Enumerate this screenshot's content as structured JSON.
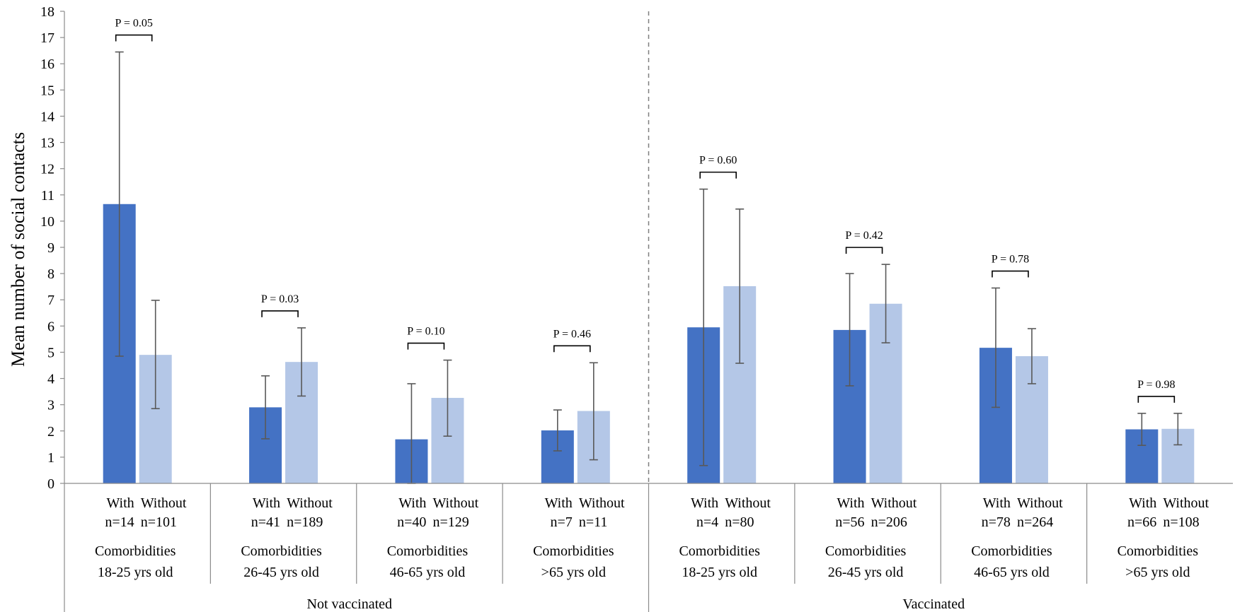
{
  "chart_data": {
    "type": "bar",
    "ylabel": "Mean number of social contacts",
    "ylim": [
      0,
      18
    ],
    "yticks": [
      "0",
      "1",
      "2",
      "3",
      "4",
      "5",
      "6",
      "7",
      "8",
      "9",
      "10",
      "11",
      "12",
      "13",
      "14",
      "15",
      "16",
      "17",
      "18"
    ],
    "bar_labels": [
      "With",
      "Without"
    ],
    "colors": {
      "with": "#4472c4",
      "without": "#b4c7e7",
      "error": "#595959"
    },
    "groups": [
      {
        "label": "Not vaccinated",
        "categories": [
          {
            "line1": "Comorbidities",
            "line2": "18-25 yrs old",
            "n_with": "n=14",
            "n_without": "n=101",
            "p": "P = 0.05",
            "with": {
              "value": 10.65,
              "low": 4.85,
              "high": 16.45
            },
            "without": {
              "value": 4.9,
              "low": 2.85,
              "high": 6.98
            }
          },
          {
            "line1": "Comorbidities",
            "line2": "26-45 yrs old",
            "n_with": "n=41",
            "n_without": "n=189",
            "p": "P = 0.03",
            "with": {
              "value": 2.9,
              "low": 1.7,
              "high": 4.1
            },
            "without": {
              "value": 4.63,
              "low": 3.33,
              "high": 5.93
            }
          },
          {
            "line1": "Comorbidities",
            "line2": "46-65 yrs old",
            "n_with": "n=40",
            "n_without": "n=129",
            "p": "P = 0.10",
            "with": {
              "value": 1.68,
              "low": 0.0,
              "high": 3.8
            },
            "without": {
              "value": 3.26,
              "low": 1.8,
              "high": 4.7
            }
          },
          {
            "line1": "Comorbidities",
            "line2": ">65 yrs old",
            "n_with": "n=7",
            "n_without": "n=11",
            "p": "P = 0.46",
            "with": {
              "value": 2.02,
              "low": 1.24,
              "high": 2.8
            },
            "without": {
              "value": 2.76,
              "low": 0.9,
              "high": 4.6
            }
          }
        ]
      },
      {
        "label": "Vaccinated",
        "categories": [
          {
            "line1": "Comorbidities",
            "line2": "18-25 yrs old",
            "n_with": "n=4",
            "n_without": "n=80",
            "p": "P = 0.60",
            "with": {
              "value": 5.95,
              "low": 0.68,
              "high": 11.22
            },
            "without": {
              "value": 7.52,
              "low": 4.58,
              "high": 10.46
            }
          },
          {
            "line1": "Comorbidities",
            "line2": "26-45 yrs old",
            "n_with": "n=56",
            "n_without": "n=206",
            "p": "P = 0.42",
            "with": {
              "value": 5.85,
              "low": 3.72,
              "high": 8.0
            },
            "without": {
              "value": 6.85,
              "low": 5.36,
              "high": 8.35
            }
          },
          {
            "line1": "Comorbidities",
            "line2": "46-65 yrs old",
            "n_with": "n=78",
            "n_without": "n=264",
            "p": "P = 0.78",
            "with": {
              "value": 5.17,
              "low": 2.9,
              "high": 7.45
            },
            "without": {
              "value": 4.85,
              "low": 3.8,
              "high": 5.9
            }
          },
          {
            "line1": "Comorbidities",
            "line2": ">65 yrs old",
            "n_with": "n=66",
            "n_without": "n=108",
            "p": "P = 0.98",
            "with": {
              "value": 2.06,
              "low": 1.45,
              "high": 2.67
            },
            "without": {
              "value": 2.08,
              "low": 1.47,
              "high": 2.67
            }
          }
        ]
      }
    ]
  }
}
